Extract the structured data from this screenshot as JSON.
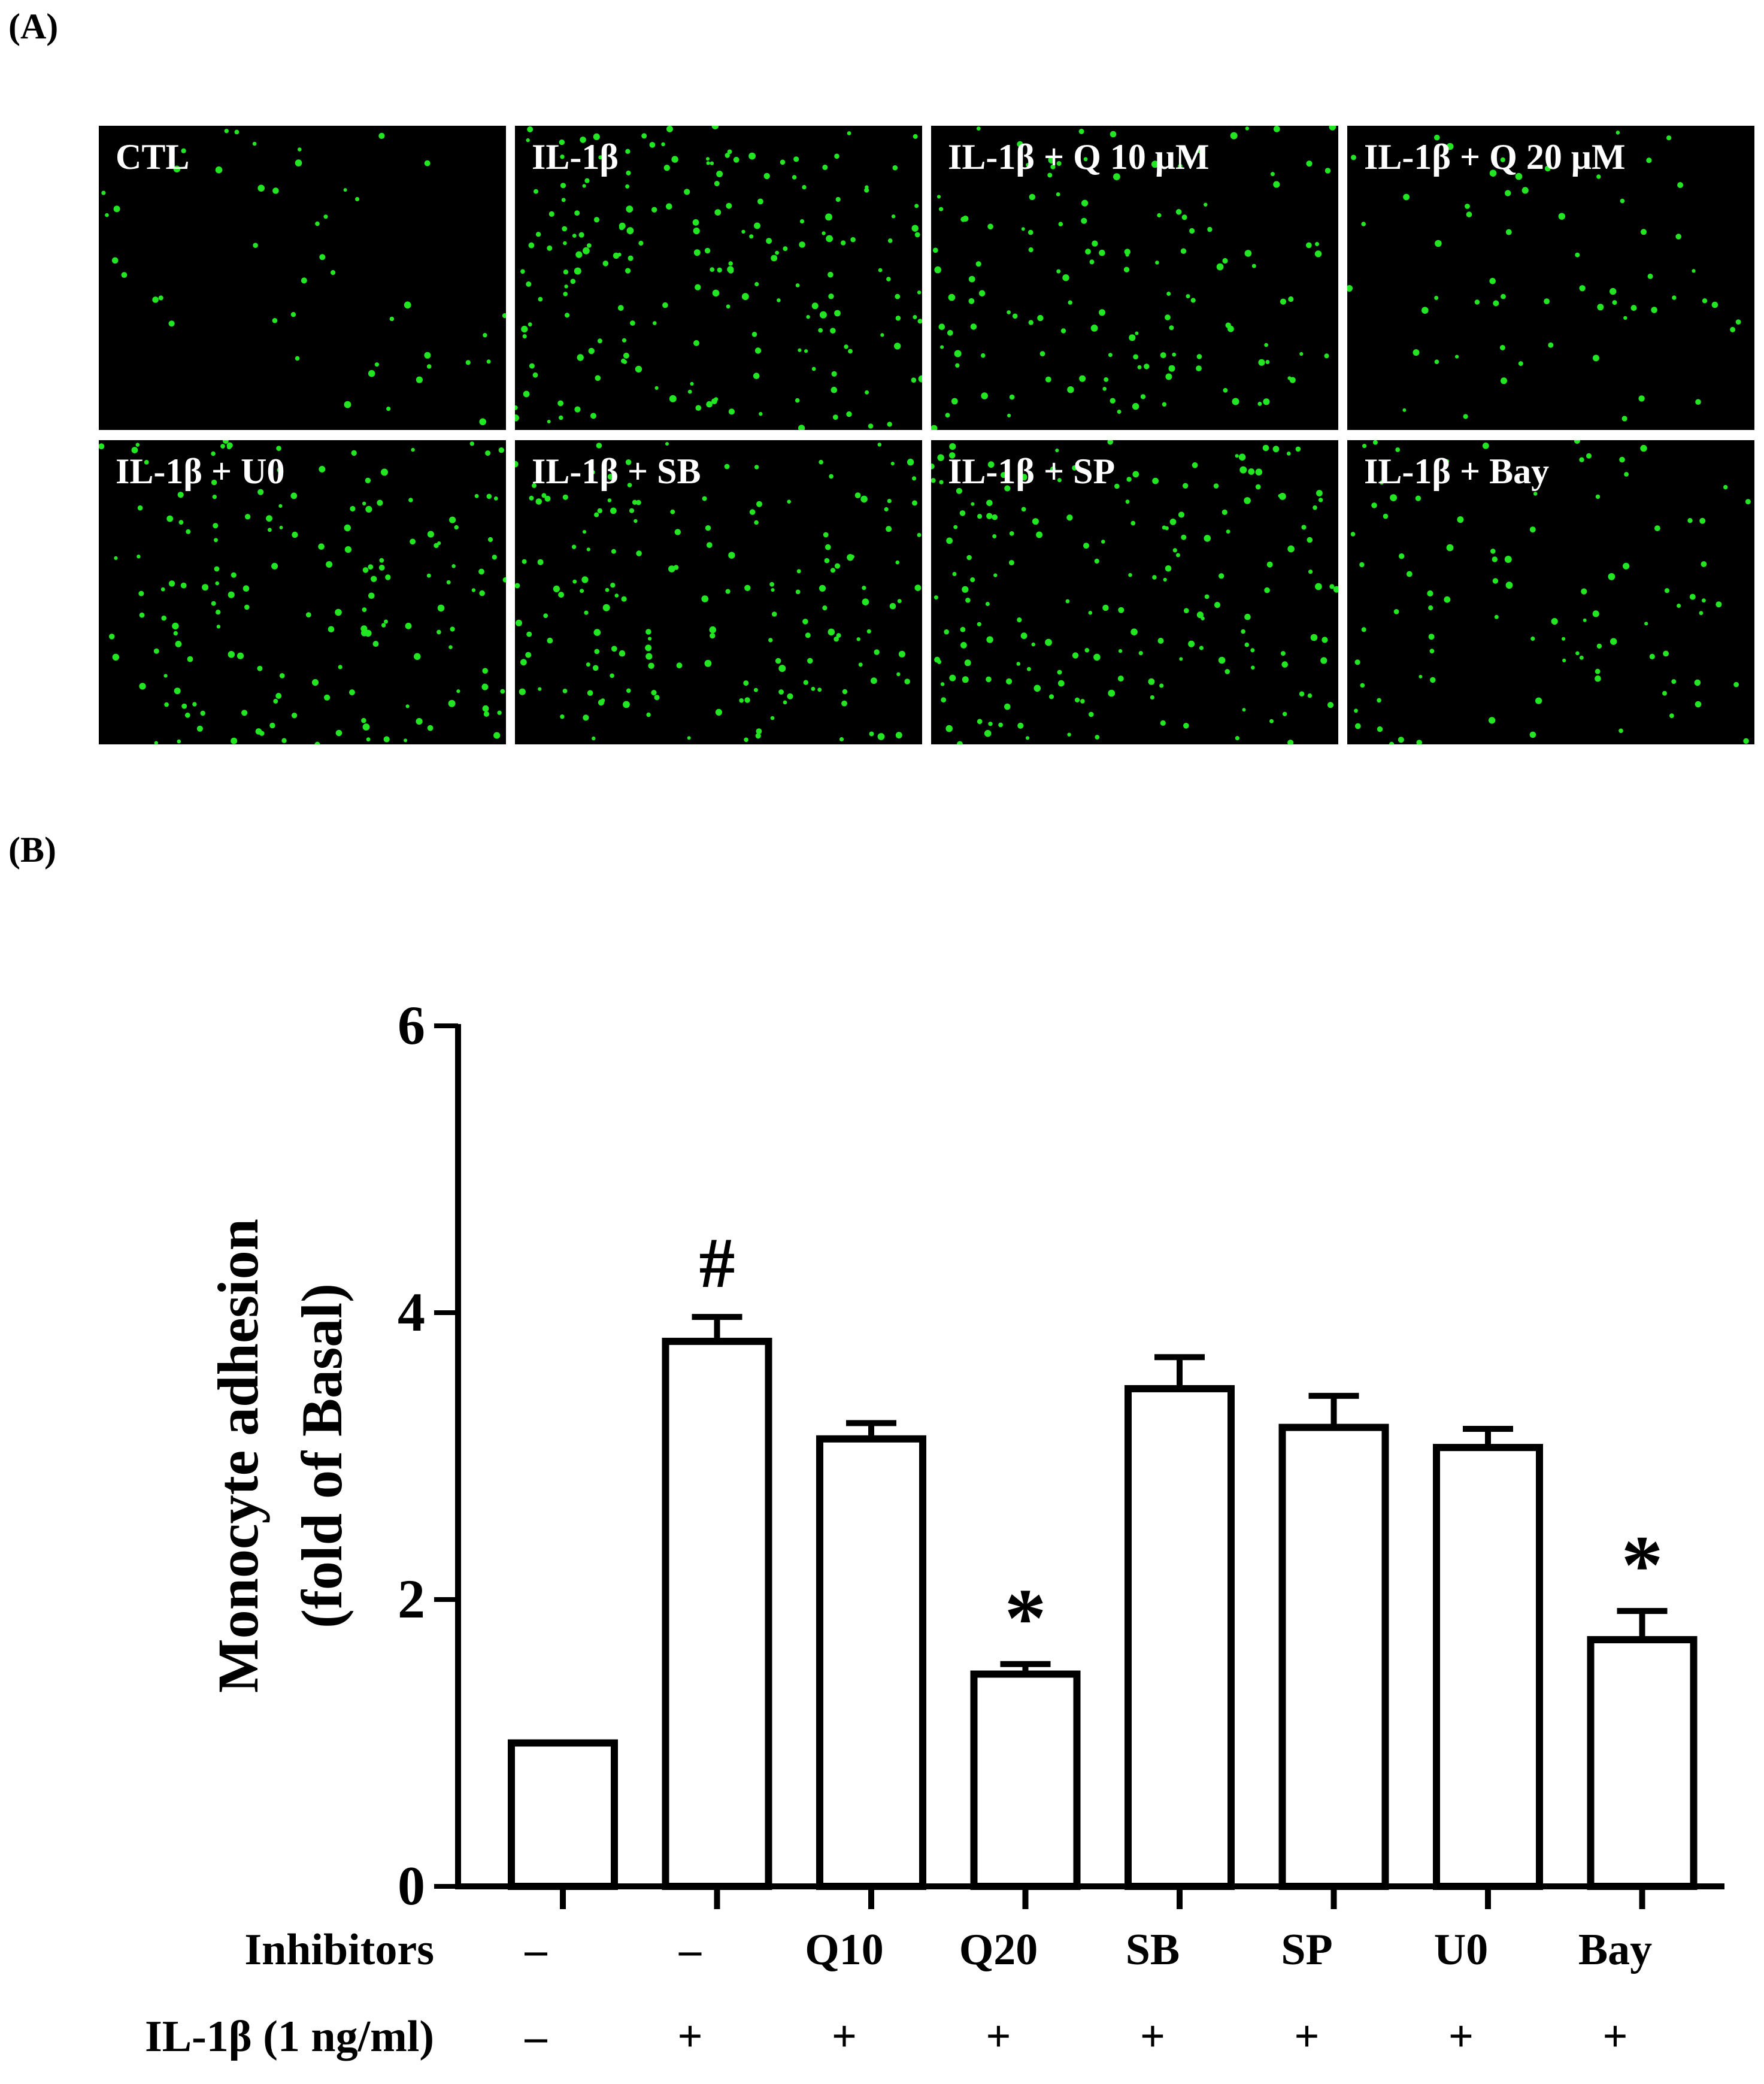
{
  "panel_a": {
    "label": "(A)",
    "images": [
      {
        "label": "CTL",
        "density": 45
      },
      {
        "label": "IL-1β",
        "density": 190
      },
      {
        "label": "IL-1β + Q 10 μM",
        "density": 130
      },
      {
        "label": "IL-1β + Q 20 μM",
        "density": 60
      },
      {
        "label": "IL-1β + U0",
        "density": 160
      },
      {
        "label": "IL-1β + SB",
        "density": 165
      },
      {
        "label": "IL-1β + SP",
        "density": 175
      },
      {
        "label": "IL-1β + Bay",
        "density": 90
      }
    ],
    "dot_color": "#22e622"
  },
  "panel_b": {
    "label": "(B)"
  },
  "chart_data": {
    "type": "bar",
    "ylabel_line1": "Monocyte adhesion",
    "ylabel_line2": "(fold of Basal)",
    "ylim": [
      0,
      6
    ],
    "yticks": [
      "0",
      "2",
      "4",
      "6"
    ],
    "categories": [
      "CTL",
      "IL-1β",
      "Q10",
      "Q20",
      "SB",
      "SP",
      "U0",
      "Bay"
    ],
    "values": [
      1.0,
      3.8,
      3.12,
      1.48,
      3.47,
      3.2,
      3.06,
      1.72
    ],
    "errors": [
      0.0,
      0.17,
      0.11,
      0.07,
      0.22,
      0.22,
      0.13,
      0.2
    ],
    "annotations": [
      "",
      "#",
      "",
      "*",
      "",
      "",
      "",
      "*"
    ],
    "rows": [
      {
        "label": "Inhibitors",
        "values": [
          "–",
          "–",
          "Q10",
          "Q20",
          "SB",
          "SP",
          "U0",
          "Bay"
        ]
      },
      {
        "label": "IL-1β (1 ng/ml)",
        "values": [
          "–",
          "+",
          "+",
          "+",
          "+",
          "+",
          "+",
          "+"
        ]
      }
    ],
    "bar_fill": "#ffffff",
    "bar_stroke": "#000000"
  }
}
